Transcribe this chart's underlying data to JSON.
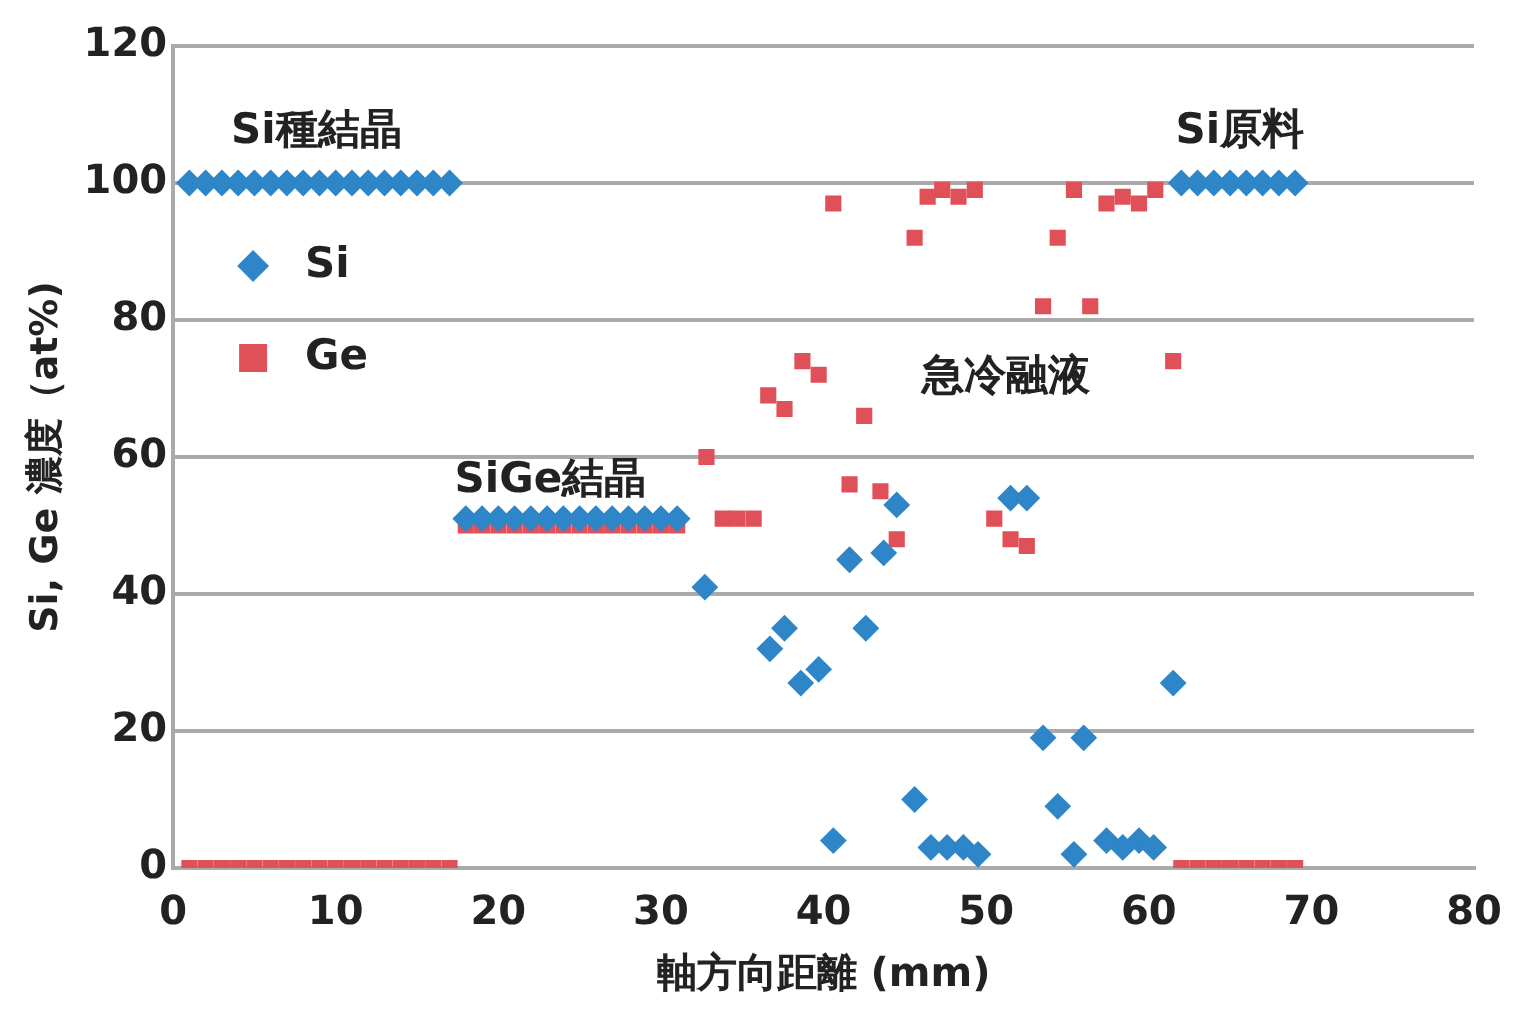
{
  "chart_data": {
    "type": "scatter",
    "xlabel": "軸方向距離 (mm)",
    "ylabel": "Si, Ge 濃度（at%)",
    "xlim": [
      0,
      80
    ],
    "xticks": [
      0,
      10,
      20,
      30,
      40,
      50,
      60,
      70,
      80
    ],
    "ylim": [
      0,
      120
    ],
    "yticks": [
      0,
      20,
      40,
      60,
      80,
      100,
      120
    ],
    "grid": "y",
    "legend": "top left",
    "annotations": [
      "Si種結晶",
      "SiGe結晶",
      "急冷融液",
      "Si原料"
    ],
    "series": [
      {
        "name": "Si",
        "color": "#2e86c8",
        "marker": "diamond",
        "x": [
          1,
          2,
          3,
          4,
          5,
          6,
          7,
          8,
          9,
          10,
          11,
          12,
          13,
          14,
          15,
          16,
          17,
          18,
          19,
          20,
          21,
          22,
          23,
          24,
          25,
          26,
          27,
          28,
          29,
          30,
          31,
          32.7,
          36.7,
          37.6,
          38.6,
          39.7,
          40.6,
          41.6,
          42.6,
          43.7,
          44.5,
          45.6,
          46.6,
          47.6,
          48.6,
          49.5,
          51.5,
          52.5,
          53.5,
          54.4,
          55.4,
          56,
          57.4,
          58.4,
          59.4,
          60.3,
          61.5,
          62,
          63,
          64,
          65,
          66,
          67,
          68,
          69
        ],
        "values": [
          100,
          100,
          100,
          100,
          100,
          100,
          100,
          100,
          100,
          100,
          100,
          100,
          100,
          100,
          100,
          100,
          100,
          51,
          51,
          51,
          51,
          51,
          51,
          51,
          51,
          51,
          51,
          51,
          51,
          51,
          51,
          41,
          32,
          35,
          27,
          29,
          4,
          45,
          35,
          46,
          53,
          10,
          3,
          3,
          3,
          2,
          54,
          54,
          19,
          9,
          2,
          19,
          4,
          3,
          4,
          3,
          27,
          100,
          100,
          100,
          100,
          100,
          100,
          100,
          100
        ]
      },
      {
        "name": "Ge",
        "color": "#e05058",
        "marker": "square",
        "x": [
          1,
          2,
          3,
          4,
          5,
          6,
          7,
          8,
          9,
          10,
          11,
          12,
          13,
          14,
          15,
          16,
          17,
          18,
          19,
          20,
          21,
          22,
          23,
          24,
          25,
          26,
          27,
          28,
          29,
          30,
          31,
          32.8,
          33.8,
          34.7,
          35.7,
          36.6,
          37.6,
          38.7,
          39.7,
          40.6,
          41.6,
          42.5,
          43.5,
          44.5,
          45.6,
          46.4,
          47.3,
          48.3,
          49.3,
          50.5,
          51.5,
          52.5,
          53.5,
          54.4,
          55.4,
          56.4,
          57.4,
          58.4,
          59.4,
          60.4,
          61.5,
          62,
          63,
          64,
          65,
          66,
          67,
          68,
          69
        ],
        "values": [
          0,
          0,
          0,
          0,
          0,
          0,
          0,
          0,
          0,
          0,
          0,
          0,
          0,
          0,
          0,
          0,
          0,
          50,
          50,
          50,
          50,
          50,
          50,
          50,
          50,
          50,
          50,
          50,
          50,
          50,
          50,
          60,
          51,
          51,
          51,
          69,
          67,
          74,
          72,
          97,
          56,
          66,
          55,
          48,
          92,
          98,
          99,
          98,
          99,
          51,
          48,
          47,
          82,
          92,
          99,
          82,
          97,
          98,
          97,
          99,
          74,
          0,
          0,
          0,
          0,
          0,
          0,
          0,
          0
        ]
      }
    ]
  }
}
